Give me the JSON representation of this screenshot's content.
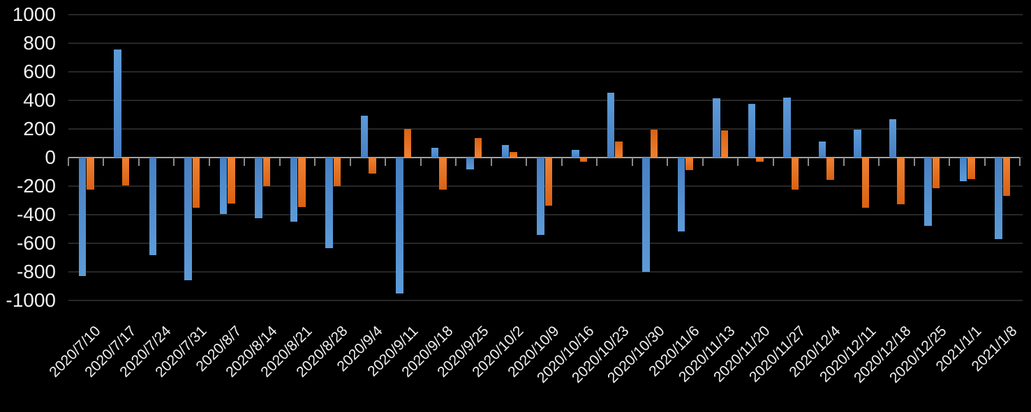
{
  "chart_data": {
    "type": "bar",
    "title": "",
    "legend": "none",
    "grid": true,
    "categories": [
      "2020/7/10",
      "2020/7/17",
      "2020/7/24",
      "2020/7/31",
      "2020/8/7",
      "2020/8/14",
      "2020/8/21",
      "2020/8/28",
      "2020/9/4",
      "2020/9/11",
      "2020/9/18",
      "2020/9/25",
      "2020/10/2",
      "2020/10/9",
      "2020/10/16",
      "2020/10/23",
      "2020/10/30",
      "2020/11/6",
      "2020/11/13",
      "2020/11/20",
      "2020/11/27",
      "2020/12/4",
      "2020/12/11",
      "2020/12/18",
      "2020/12/25",
      "2021/1/1",
      "2021/1/8"
    ],
    "series": [
      {
        "name": "blue-series",
        "color": "#4e8bcd",
        "color_near_axis": "#4780c4",
        "color_far_end": "#5d9bd8",
        "values": [
          -830,
          755,
          -685,
          -860,
          -395,
          -425,
          -450,
          -635,
          295,
          -950,
          70,
          -85,
          90,
          -540,
          55,
          455,
          -800,
          -515,
          415,
          375,
          420,
          110,
          195,
          270,
          -480,
          -165,
          -570
        ]
      },
      {
        "name": "orange-series",
        "color": "#ed7d31",
        "color_near_axis": "#ef8133",
        "color_far_end": "#d96213",
        "values": [
          -225,
          -195,
          0,
          -350,
          -320,
          -200,
          -345,
          -200,
          -110,
          200,
          -225,
          135,
          40,
          -335,
          -30,
          110,
          195,
          -90,
          190,
          -30,
          -225,
          -155,
          -350,
          -325,
          -215,
          -150,
          -270
        ]
      }
    ],
    "y_axis": {
      "min": -1000,
      "max": 1000,
      "tick_step": 200,
      "tick_labels": [
        "1000",
        "800",
        "600",
        "400",
        "200",
        "0",
        "-200",
        "-400",
        "-600",
        "-800",
        "-1000"
      ]
    },
    "colors": {
      "background": "#000000",
      "gridline": "#272727",
      "zero_axis_line": "#a3a3a3",
      "axis_tick": "#8a8a8a",
      "axis_label_text": "#f0f0f0"
    }
  }
}
